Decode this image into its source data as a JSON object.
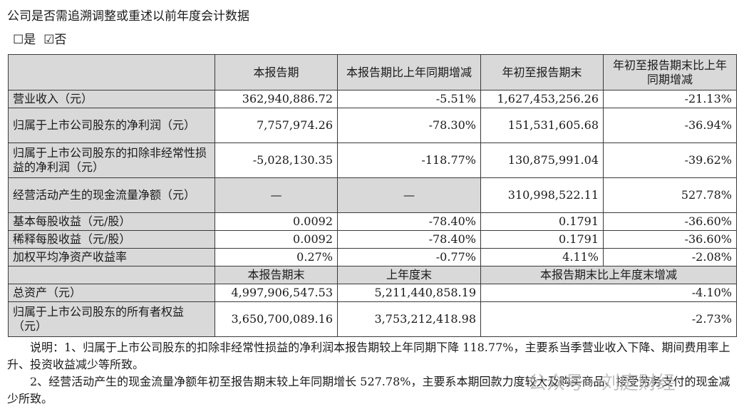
{
  "question": "公司是否需追溯调整或重述以前年度会计数据",
  "options": {
    "yes_box": "☐",
    "yes": "是",
    "no_box": "☑",
    "no": "否"
  },
  "table1": {
    "headers": [
      "",
      "本报告期",
      "本报告期比上年同期增减",
      "年初至报告期末",
      "年初至报告期末比上年同期增减"
    ],
    "rows": [
      {
        "label": "营业收入（元）",
        "c1": "362,940,886.72",
        "c2": "-5.51%",
        "c3": "1,627,453,256.26",
        "c4": "-21.13%"
      },
      {
        "label": "归属于上市公司股东的净利润（元）",
        "c1": "7,757,974.26",
        "c2": "-78.30%",
        "c3": "151,531,605.68",
        "c4": "-36.94%"
      },
      {
        "label": "归属于上市公司股东的扣除非经常性损益的净利润（元）",
        "c1": "-5,028,130.35",
        "c2": "-118.77%",
        "c3": "130,875,991.04",
        "c4": "-39.62%"
      },
      {
        "label": "经营活动产生的现金流量净额（元）",
        "c1": "—",
        "c2": "—",
        "c3": "310,998,522.11",
        "c4": "527.78%"
      },
      {
        "label": "基本每股收益（元/股）",
        "c1": "0.0092",
        "c2": "-78.40%",
        "c3": "0.1791",
        "c4": "-36.60%"
      },
      {
        "label": "稀释每股收益（元/股）",
        "c1": "0.0092",
        "c2": "-78.40%",
        "c3": "0.1791",
        "c4": "-36.60%"
      },
      {
        "label": "加权平均净资产收益率",
        "c1": "0.27%",
        "c2": "-0.77%",
        "c3": "4.11%",
        "c4": "-2.08%"
      }
    ]
  },
  "table2": {
    "headers": [
      "",
      "本报告期末",
      "上年度末",
      "本报告期末比上年度末增减"
    ],
    "rows": [
      {
        "label": "总资产（元）",
        "c1": "4,997,906,547.53",
        "c2": "5,211,440,858.19",
        "c3": "-4.10%"
      },
      {
        "label": "归属于上市公司股东的所有者权益（元）",
        "c1": "3,650,700,089.16",
        "c2": "3,753,212,418.98",
        "c3": "-2.73%"
      }
    ]
  },
  "notes": [
    "说明：1、归属于上市公司股东的扣除非经常性损益的净利润本报告期较上年同期下降 118.77%，主要系当季营业收入下降、期间费用率上升、投资收益减少等所致。",
    "2、经营活动产生的现金流量净额年初至报告期末较上年同期增长 527.78%，主要系本期回款力度较大及购买商品、接受劳务支付的现金减少所致。"
  ],
  "watermark": "公众号 · 刘庭财经"
}
